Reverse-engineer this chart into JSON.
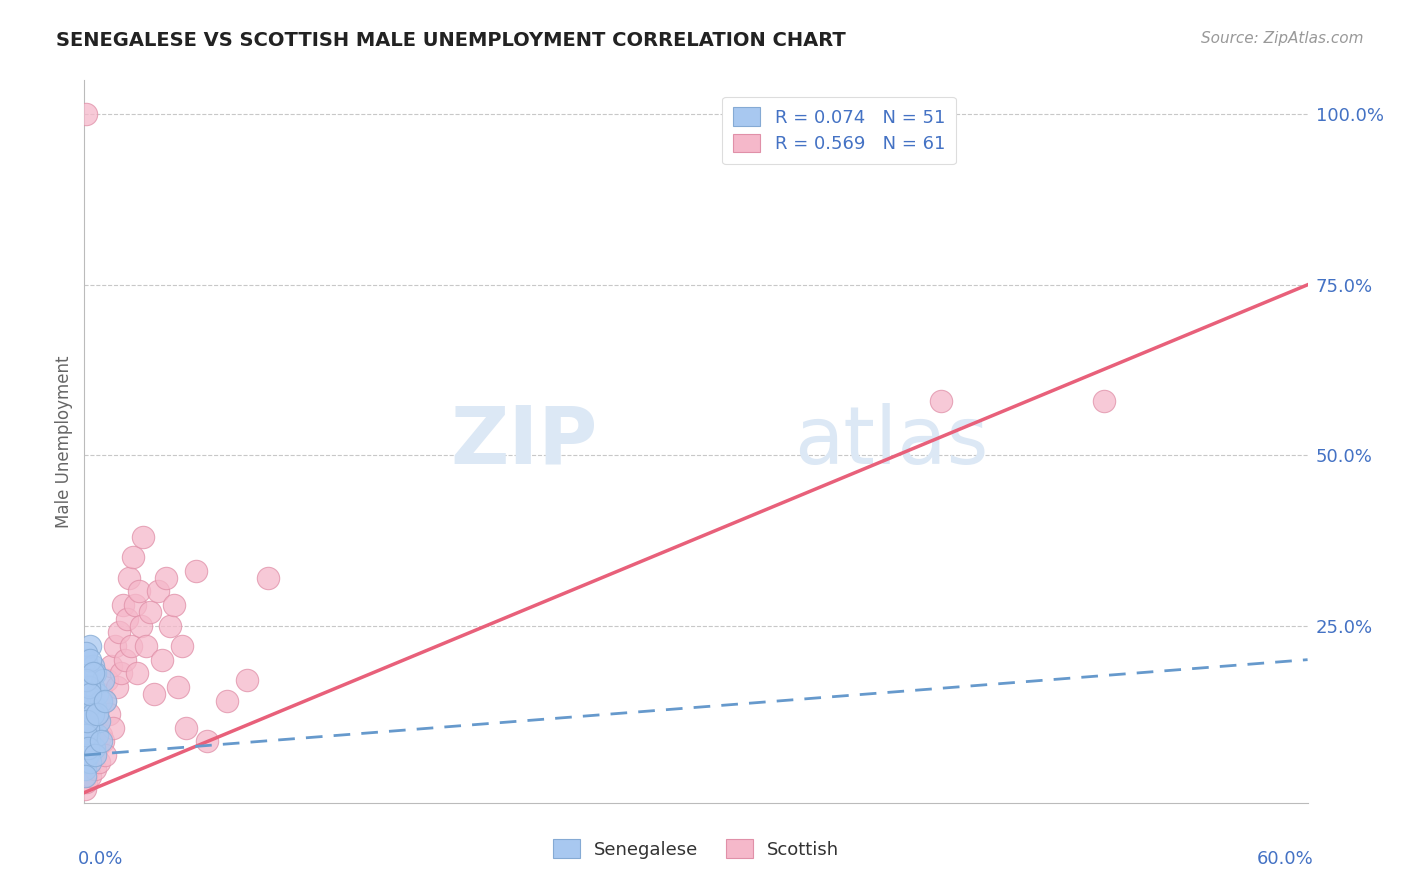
{
  "title": "SENEGALESE VS SCOTTISH MALE UNEMPLOYMENT CORRELATION CHART",
  "source": "Source: ZipAtlas.com",
  "ylabel": "Male Unemployment",
  "xlim": [
    0.0,
    0.6
  ],
  "ylim": [
    -0.01,
    1.05
  ],
  "yticks": [
    0.0,
    0.25,
    0.5,
    0.75,
    1.0
  ],
  "ytick_labels": [
    "",
    "25.0%",
    "50.0%",
    "75.0%",
    "100.0%"
  ],
  "blue_color": "#a8c8f0",
  "blue_edge_color": "#85aad4",
  "pink_color": "#f5b8ca",
  "pink_edge_color": "#e090a8",
  "blue_line_color": "#6699cc",
  "pink_line_color": "#e8607a",
  "title_color": "#222222",
  "axis_color": "#4472c4",
  "grid_color": "#c8c8c8",
  "background_color": "#ffffff",
  "watermark_color": "#dce8f5",
  "senegalese_x": [
    0.0005,
    0.001,
    0.001,
    0.001,
    0.001,
    0.001,
    0.001,
    0.001,
    0.0015,
    0.0015,
    0.0015,
    0.002,
    0.002,
    0.002,
    0.002,
    0.0025,
    0.003,
    0.003,
    0.003,
    0.0035,
    0.004,
    0.004,
    0.0045,
    0.005,
    0.005,
    0.006,
    0.006,
    0.007,
    0.008,
    0.009,
    0.0005,
    0.001,
    0.001,
    0.0015,
    0.002,
    0.002,
    0.0025,
    0.003,
    0.003,
    0.004,
    0.0005,
    0.001,
    0.001,
    0.0015,
    0.002,
    0.003,
    0.004,
    0.005,
    0.006,
    0.008,
    0.01
  ],
  "senegalese_y": [
    0.05,
    0.18,
    0.14,
    0.1,
    0.07,
    0.12,
    0.16,
    0.2,
    0.09,
    0.15,
    0.19,
    0.11,
    0.06,
    0.17,
    0.13,
    0.08,
    0.14,
    0.1,
    0.22,
    0.12,
    0.16,
    0.19,
    0.07,
    0.13,
    0.18,
    0.09,
    0.15,
    0.11,
    0.14,
    0.17,
    0.04,
    0.08,
    0.21,
    0.06,
    0.1,
    0.13,
    0.16,
    0.05,
    0.2,
    0.12,
    0.03,
    0.09,
    0.17,
    0.11,
    0.07,
    0.15,
    0.18,
    0.06,
    0.12,
    0.08,
    0.14
  ],
  "scottish_x": [
    0.0005,
    0.001,
    0.001,
    0.001,
    0.002,
    0.002,
    0.002,
    0.003,
    0.003,
    0.003,
    0.004,
    0.004,
    0.005,
    0.005,
    0.006,
    0.006,
    0.007,
    0.007,
    0.008,
    0.008,
    0.009,
    0.01,
    0.01,
    0.011,
    0.012,
    0.013,
    0.014,
    0.015,
    0.016,
    0.017,
    0.018,
    0.019,
    0.02,
    0.021,
    0.022,
    0.023,
    0.024,
    0.025,
    0.026,
    0.027,
    0.028,
    0.029,
    0.03,
    0.032,
    0.034,
    0.036,
    0.038,
    0.04,
    0.042,
    0.044,
    0.046,
    0.048,
    0.05,
    0.055,
    0.06,
    0.07,
    0.08,
    0.09,
    0.42,
    0.5,
    0.001
  ],
  "scottish_y": [
    0.01,
    0.03,
    0.06,
    0.02,
    0.05,
    0.08,
    0.04,
    0.07,
    0.1,
    0.03,
    0.06,
    0.12,
    0.09,
    0.04,
    0.11,
    0.07,
    0.13,
    0.05,
    0.09,
    0.15,
    0.08,
    0.14,
    0.06,
    0.17,
    0.12,
    0.19,
    0.1,
    0.22,
    0.16,
    0.24,
    0.18,
    0.28,
    0.2,
    0.26,
    0.32,
    0.22,
    0.35,
    0.28,
    0.18,
    0.3,
    0.25,
    0.38,
    0.22,
    0.27,
    0.15,
    0.3,
    0.2,
    0.32,
    0.25,
    0.28,
    0.16,
    0.22,
    0.1,
    0.33,
    0.08,
    0.14,
    0.17,
    0.32,
    0.58,
    0.58,
    1.0
  ],
  "sen_trend_x0": 0.0,
  "sen_trend_x1": 0.6,
  "sen_trend_y0": 0.06,
  "sen_trend_y1": 0.2,
  "sco_trend_x0": 0.0,
  "sco_trend_x1": 0.6,
  "sco_trend_y0": 0.005,
  "sco_trend_y1": 0.75
}
